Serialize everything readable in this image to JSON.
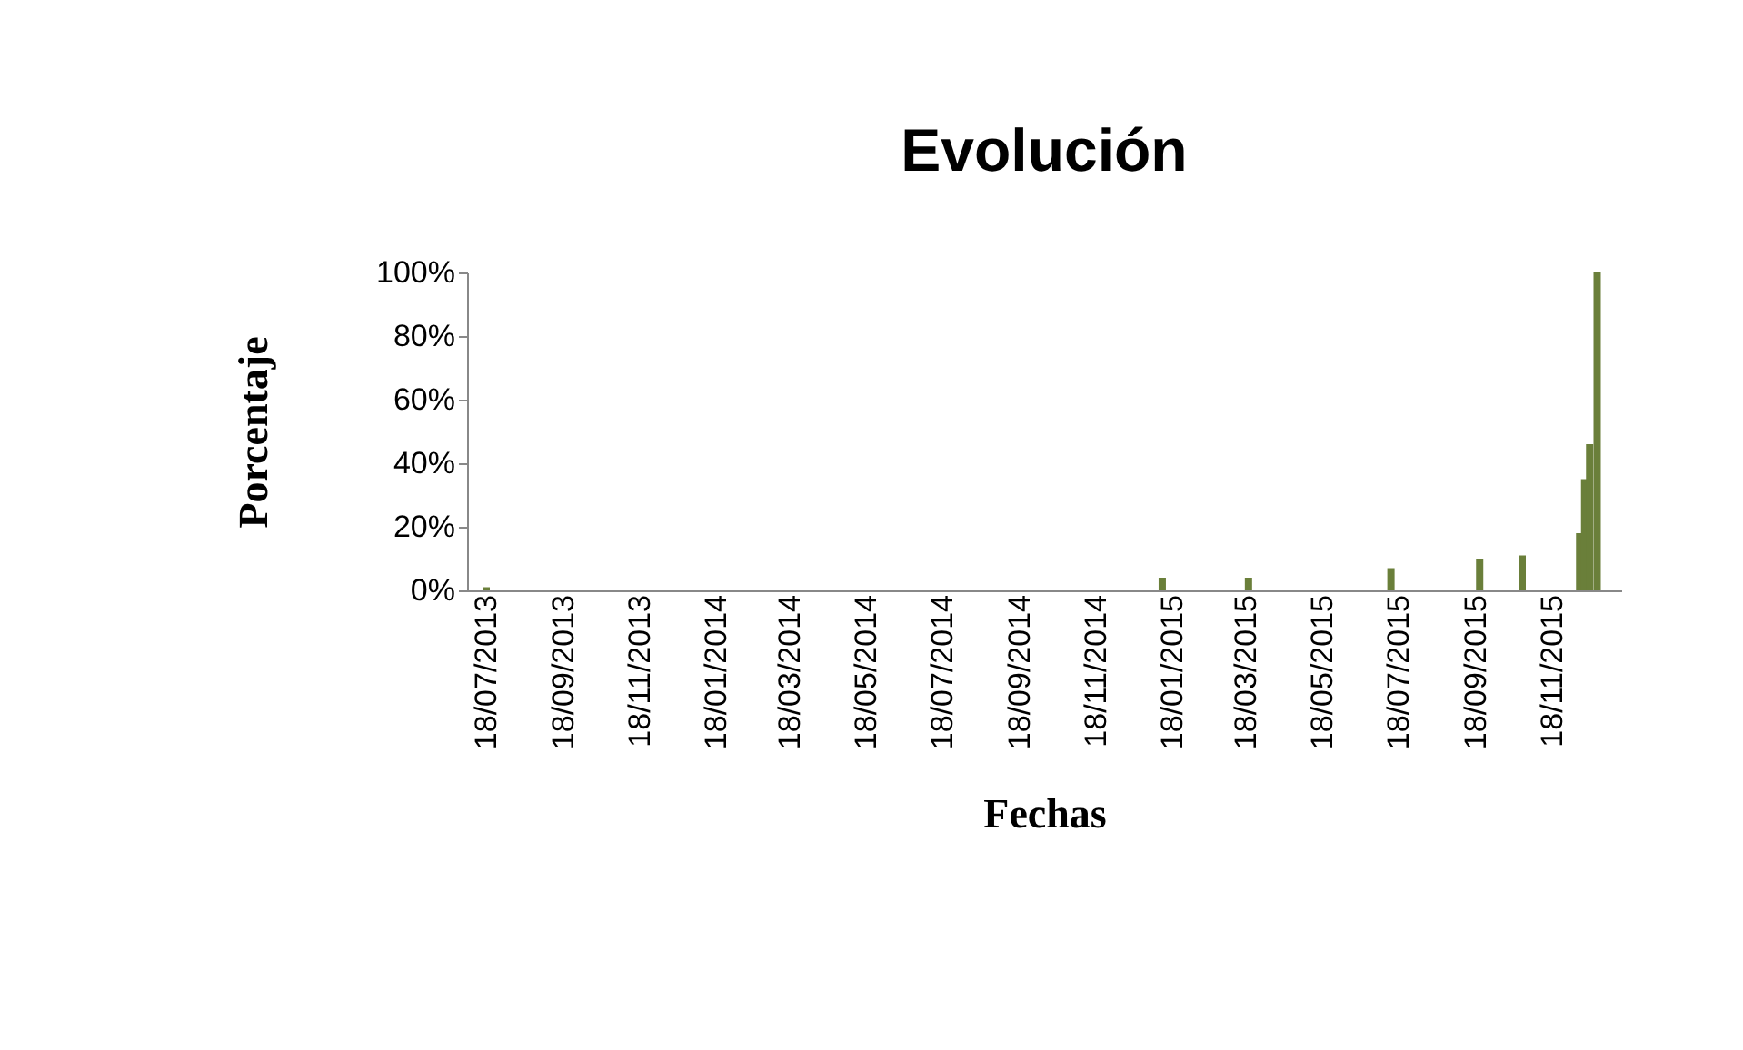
{
  "chart_data": {
    "type": "bar",
    "title": "Evolución",
    "xlabel": "Fechas",
    "ylabel": "Porcentaje",
    "x": [
      "2013-07-18",
      "2015-01-10",
      "2015-03-20",
      "2015-07-12",
      "2015-09-21",
      "2015-10-25",
      "2015-12-10",
      "2015-12-14",
      "2015-12-18",
      "2015-12-24"
    ],
    "values": [
      1,
      4,
      4,
      7,
      10,
      11,
      18,
      35,
      46,
      100
    ],
    "color": "#6a7f3a",
    "xlim": [
      "2013-07-10",
      "2016-01-05"
    ],
    "xticks": [
      {
        "value": "2013-07-18",
        "label": "18/07/2013"
      },
      {
        "value": "2013-09-18",
        "label": "18/09/2013"
      },
      {
        "value": "2013-11-18",
        "label": "18/11/2013"
      },
      {
        "value": "2014-01-18",
        "label": "18/01/2014"
      },
      {
        "value": "2014-03-18",
        "label": "18/03/2014"
      },
      {
        "value": "2014-05-18",
        "label": "18/05/2014"
      },
      {
        "value": "2014-07-18",
        "label": "18/07/2014"
      },
      {
        "value": "2014-09-18",
        "label": "18/09/2014"
      },
      {
        "value": "2014-11-18",
        "label": "18/11/2014"
      },
      {
        "value": "2015-01-18",
        "label": "18/01/2015"
      },
      {
        "value": "2015-03-18",
        "label": "18/03/2015"
      },
      {
        "value": "2015-05-18",
        "label": "18/05/2015"
      },
      {
        "value": "2015-07-18",
        "label": "18/07/2015"
      },
      {
        "value": "2015-09-18",
        "label": "18/09/2015"
      },
      {
        "value": "2015-11-18",
        "label": "18/11/2015"
      }
    ],
    "ylim": [
      0,
      100
    ],
    "yticks": [
      {
        "value": 0,
        "label": "0%"
      },
      {
        "value": 20,
        "label": "20%"
      },
      {
        "value": 40,
        "label": "40%"
      },
      {
        "value": 60,
        "label": "60%"
      },
      {
        "value": 80,
        "label": "80%"
      },
      {
        "value": 100,
        "label": "100%"
      }
    ],
    "grid": false
  }
}
